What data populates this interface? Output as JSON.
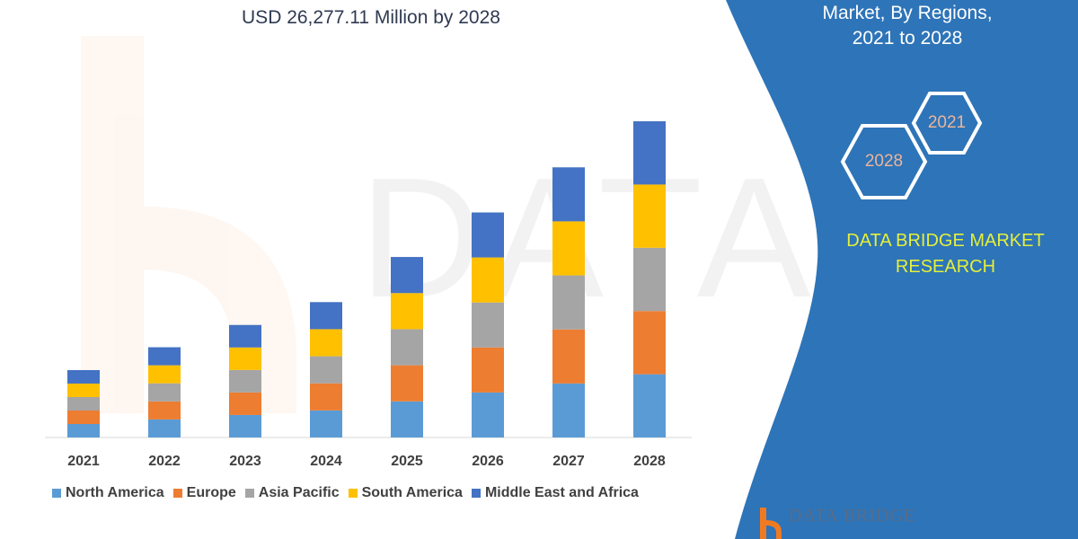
{
  "header": {
    "title_line": "USD 26,277.11 Million by 2028"
  },
  "side_panel": {
    "title_line1": "Market, By Regions,",
    "title_line2": "2021 to 2028",
    "hex_badges": [
      "2021",
      "2028"
    ],
    "brand_line1": "DATA BRIDGE MARKET",
    "brand_line2": "RESEARCH",
    "logo_text": "DATA BRIDGE",
    "panel_color": "#2e74b8"
  },
  "chart_data": {
    "type": "bar",
    "stacked": true,
    "title": "USD 26,277.11 Million by 2028",
    "xlabel": "",
    "ylabel": "",
    "categories": [
      "2021",
      "2022",
      "2023",
      "2024",
      "2025",
      "2026",
      "2027",
      "2028"
    ],
    "series": [
      {
        "name": "North America",
        "color": "#5b9bd5",
        "values": [
          1120,
          1500,
          1870,
          2250,
          3000,
          3740,
          4490,
          5255
        ]
      },
      {
        "name": "Europe",
        "color": "#ed7d31",
        "values": [
          1120,
          1500,
          1870,
          2250,
          3000,
          3740,
          4490,
          5255
        ]
      },
      {
        "name": "Asia Pacific",
        "color": "#a5a5a5",
        "values": [
          1120,
          1500,
          1870,
          2250,
          3000,
          3740,
          4490,
          5255
        ]
      },
      {
        "name": "South America",
        "color": "#ffc000",
        "values": [
          1120,
          1500,
          1870,
          2250,
          3000,
          3740,
          4490,
          5256
        ]
      },
      {
        "name": "Middle East and Africa",
        "color": "#4472c4",
        "values": [
          1120,
          1500,
          1870,
          2250,
          3000,
          3740,
          4490,
          5256
        ]
      }
    ],
    "ylim": [
      0,
      26277.11
    ],
    "grid": false,
    "y_axis_shown": false,
    "legend_position": "bottom"
  }
}
